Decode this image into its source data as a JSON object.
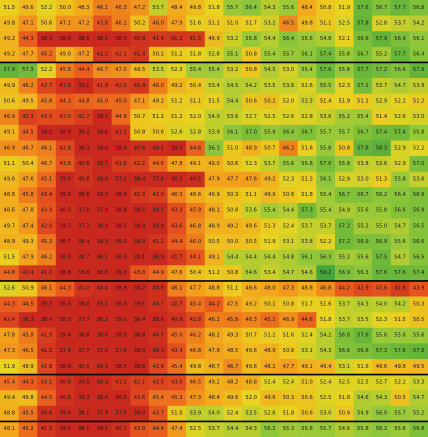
{
  "chart_data": {
    "type": "heatmap",
    "title": "",
    "xlabel": "",
    "ylabel": "",
    "grid": false,
    "legend": "none",
    "color_scale": {
      "min": 40.0,
      "max": 60.0,
      "stops": [
        "#c8281e",
        "#e8561e",
        "#f4a51c",
        "#e8d420",
        "#93c83a",
        "#2f9e3a"
      ]
    },
    "group_separators_after_rows": [
      3,
      17,
      23,
      26,
      32
    ],
    "rows": [
      [
        51.5,
        49.6,
        52.2,
        50.0,
        48.3,
        46.1,
        46.3,
        47.2,
        53.7,
        48.4,
        49.8,
        51.8,
        55.7,
        56.4,
        54.3,
        55.6,
        48.4,
        50.8,
        51.9,
        57.6,
        56.7,
        57.7,
        56.8
      ],
      [
        49.8,
        47.1,
        50.6,
        47.1,
        47.2,
        43.8,
        46.1,
        50.2,
        46.0,
        47.9,
        51.6,
        51.1,
        51.0,
        51.7,
        53.2,
        46.5,
        49.8,
        51.1,
        52.5,
        57.8,
        52.8,
        53.7,
        54.2
      ],
      [
        49.2,
        44.3,
        38.3,
        38.9,
        38.5,
        38.1,
        38.3,
        40.9,
        41.4,
        41.2,
        41.5,
        49.9,
        53.2,
        55.8,
        54.4,
        56.4,
        55.6,
        54.8,
        52.1,
        56.9,
        57.9,
        56.9,
        56.1
      ],
      [
        49.2,
        47.7,
        45.2,
        49.0,
        47.2,
        41.2,
        42.1,
        41.4,
        50.1,
        51.2,
        51.8,
        52.8,
        55.1,
        50.8,
        55.4,
        55.7,
        56.1,
        57.4,
        55.8,
        56.7,
        55.2,
        57.7,
        56.4
      ],
      [
        57.9,
        57.3,
        52.2,
        45.8,
        44.4,
        46.7,
        47.0,
        49.5,
        53.5,
        52.3,
        55.4,
        55.4,
        53.2,
        50.8,
        54.5,
        53.0,
        55.4,
        57.6,
        55.8,
        57.7,
        57.2,
        56.6,
        57.9
      ],
      [
        49.9,
        46.2,
        42.7,
        41.0,
        39.1,
        41.9,
        42.0,
        41.4,
        46.0,
        49.2,
        50.4,
        53.4,
        54.5,
        54.2,
        53.5,
        53.8,
        52.6,
        55.5,
        52.3,
        57.1,
        53.7,
        54.7,
        53.9
      ],
      [
        50.6,
        49.5,
        45.8,
        44.3,
        44.8,
        45.0,
        45.0,
        47.1,
        49.2,
        51.2,
        51.1,
        51.5,
        54.4,
        50.6,
        50.2,
        52.0,
        53.3,
        51.4,
        51.9,
        51.1,
        52.9,
        52.2,
        51.2
      ],
      [
        46.4,
        42.3,
        43.0,
        43.0,
        41.7,
        39.7,
        44.9,
        50.7,
        51.2,
        51.2,
        52.0,
        54.0,
        53.6,
        52.7,
        52.5,
        52.6,
        52.8,
        53.6,
        55.2,
        55.4,
        51.4,
        52.6,
        53.0
      ],
      [
        49.1,
        44.5,
        39.0,
        38.9,
        39.2,
        38.6,
        41.1,
        50.8,
        50.6,
        52.6,
        52.8,
        53.9,
        56.1,
        57.0,
        55.9,
        56.4,
        56.7,
        55.7,
        55.7,
        56.7,
        57.4,
        57.4,
        55.8
      ],
      [
        46.9,
        46.7,
        46.1,
        42.8,
        38.3,
        38.6,
        38.4,
        40.6,
        40.5,
        39.0,
        44.6,
        56.3,
        51.0,
        48.9,
        50.7,
        46.2,
        51.6,
        55.8,
        50.8,
        57.8,
        58.3,
        52.9,
        52.2
      ],
      [
        51.1,
        50.4,
        46.7,
        43.8,
        40.8,
        38.7,
        41.6,
        42.2,
        44.8,
        47.8,
        49.1,
        49.0,
        50.6,
        52.3,
        53.7,
        55.6,
        55.8,
        57.0,
        55.8,
        53.8,
        53.6,
        52.9,
        57.0
      ],
      [
        49.6,
        47.6,
        45.1,
        39.5,
        40.8,
        38.6,
        37.2,
        38.4,
        37.6,
        40.1,
        40.5,
        47.9,
        47.7,
        47.6,
        49.2,
        52.3,
        51.3,
        56.1,
        52.9,
        53.0,
        51.3,
        55.8,
        53.6
      ],
      [
        48.8,
        45.8,
        43.4,
        39.5,
        38.6,
        39.7,
        38.9,
        41.3,
        42.0,
        46.3,
        48.6,
        49.9,
        50.3,
        51.1,
        49.9,
        50.8,
        51.8,
        55.4,
        56.7,
        56.7,
        56.2,
        56.4,
        56.9
      ],
      [
        48.6,
        47.8,
        43.9,
        40.5,
        37.6,
        37.8,
        38.8,
        38.5,
        40.1,
        43.3,
        45.9,
        48.1,
        50.8,
        53.6,
        55.4,
        54.4,
        57.3,
        55.4,
        54.9,
        55.6,
        55.8,
        56.6,
        56.9
      ],
      [
        49.7,
        47.4,
        42.9,
        39.7,
        37.7,
        38.0,
        38.2,
        38.4,
        39.9,
        43.6,
        46.8,
        48.9,
        49.2,
        49.6,
        51.3,
        52.4,
        53.7,
        53.7,
        57.2,
        55.2,
        55.0,
        54.7,
        56.5
      ],
      [
        48.9,
        49.3,
        45.3,
        38.7,
        38.4,
        39.3,
        38.3,
        38.9,
        41.2,
        44.4,
        46.0,
        50.5,
        50.0,
        50.5,
        51.9,
        53.1,
        53.8,
        52.2,
        57.2,
        56.9,
        56.9,
        55.6,
        56.6
      ],
      [
        51.5,
        47.9,
        46.2,
        38.3,
        38.7,
        38.1,
        38.3,
        38.1,
        38.9,
        41.7,
        44.1,
        49.1,
        54.4,
        54.4,
        54.4,
        54.8,
        56.1,
        56.3,
        55.2,
        55.6,
        57.5,
        54.7,
        56.5
      ],
      [
        44.8,
        41.4,
        41.0,
        38.8,
        38.8,
        38.8,
        39.3,
        43.8,
        44.9,
        47.6,
        50.4,
        51.2,
        50.8,
        54.6,
        53.4,
        54.7,
        54.6,
        59.2,
        56.9,
        56.3,
        57.6,
        57.6,
        57.4
      ],
      [
        52.6,
        50.9,
        46.1,
        44.3,
        41.0,
        40.4,
        38.9,
        38.2,
        40.6,
        46.1,
        47.7,
        48.8,
        51.1,
        48.6,
        48.0,
        47.3,
        48.8,
        46.8,
        44.2,
        42.9,
        43.6,
        41.8,
        43.9
      ],
      [
        44.3,
        44.5,
        39.7,
        38.6,
        38.8,
        39.1,
        38.6,
        39.5,
        40.7,
        41.7,
        45.4,
        44.2,
        47.5,
        49.2,
        50.1,
        50.8,
        51.7,
        51.6,
        53.7,
        54.3,
        54.0,
        54.2,
        50.3
      ],
      [
        42.4,
        38.3,
        38.4,
        38.3,
        37.7,
        38.2,
        39.0,
        38.4,
        38.6,
        40.9,
        42.8,
        46.2,
        45.8,
        46.3,
        45.2,
        46.9,
        44.6,
        51.8,
        53.7,
        53.5,
        52.3,
        51.5,
        50.5
      ],
      [
        47.8,
        45.8,
        41.9,
        39.4,
        38.8,
        38.6,
        38.0,
        38.8,
        40.7,
        45.0,
        46.2,
        48.2,
        49.3,
        50.7,
        51.2,
        51.6,
        52.4,
        54.2,
        56.8,
        57.6,
        55.6,
        55.6,
        55.6
      ],
      [
        47.3,
        46.5,
        41.2,
        37.9,
        37.7,
        37.5,
        37.6,
        38.0,
        40.3,
        43.4,
        46.8,
        47.8,
        48.5,
        49.6,
        48.9,
        50.8,
        53.1,
        54.3,
        56.6,
        56.8,
        57.3,
        57.6,
        57.8
      ],
      [
        51.9,
        49.9,
        42.8,
        38.9,
        40.5,
        40.3,
        38.7,
        38.8,
        42.8,
        45.4,
        49.8,
        48.7,
        46.7,
        49.6,
        48.2,
        47.7,
        49.1,
        49.4,
        53.1,
        51.6,
        49.6,
        49.8,
        49.5
      ],
      [
        45.4,
        44.3,
        43.1,
        40.8,
        39.5,
        40.3,
        41.2,
        42.1,
        42.5,
        43.0,
        46.5,
        49.2,
        48.2,
        48.8,
        52.4,
        52.4,
        51.0,
        52.4,
        52.5,
        52.5,
        52.7,
        52.2,
        53.3
      ],
      [
        49.4,
        49.8,
        44.5,
        40.8,
        39.3,
        38.6,
        40.0,
        42.6,
        45.4,
        45.3,
        47.3,
        48.4,
        49.6,
        52.0,
        49.6,
        50.3,
        50.6,
        52.5,
        51.8,
        54.6,
        54.3,
        50.5,
        54.7
      ],
      [
        48.8,
        45.5,
        40.6,
        39.4,
        38.1,
        37.9,
        37.5,
        38.0,
        43.7,
        51.0,
        53.9,
        54.0,
        52.4,
        53.5,
        52.6,
        51.8,
        50.6,
        53.0,
        50.9,
        54.9,
        56.0,
        55.7,
        55.2
      ],
      [
        48.1,
        45.2,
        41.2,
        39.5,
        38.1,
        39.1,
        40.7,
        43.8,
        44.4,
        47.4,
        52.5,
        53.7,
        54.4,
        54.3,
        56.2,
        55.3,
        55.6,
        55.7,
        54.6,
        55.8,
        56.2,
        55.6,
        56.8
      ]
    ]
  }
}
